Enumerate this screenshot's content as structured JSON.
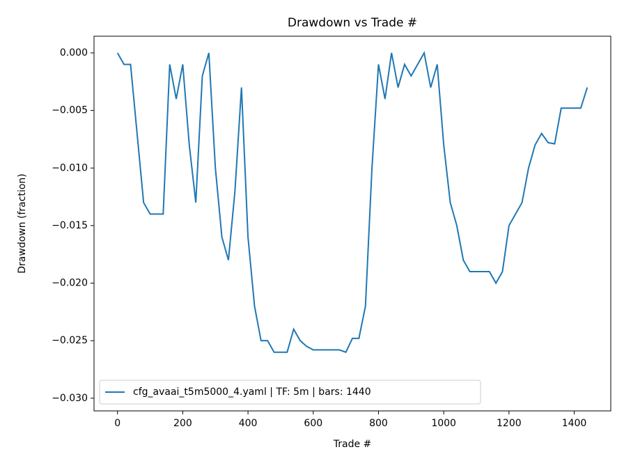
{
  "chart_data": {
    "type": "line",
    "title": "Drawdown vs Trade #",
    "xlabel": "Trade #",
    "ylabel": "Drawdown (fraction)",
    "x": [
      0,
      20,
      40,
      60,
      80,
      100,
      120,
      140,
      160,
      180,
      200,
      220,
      240,
      260,
      280,
      300,
      320,
      340,
      360,
      380,
      400,
      420,
      440,
      460,
      480,
      500,
      520,
      540,
      560,
      580,
      600,
      620,
      640,
      660,
      680,
      700,
      720,
      740,
      760,
      780,
      800,
      820,
      840,
      860,
      880,
      900,
      920,
      940,
      960,
      980,
      1000,
      1020,
      1040,
      1060,
      1080,
      1100,
      1120,
      1140,
      1160,
      1180,
      1200,
      1220,
      1240,
      1260,
      1280,
      1300,
      1320,
      1340,
      1360,
      1380,
      1400,
      1420,
      1440
    ],
    "series": [
      {
        "name": "cfg_avaai_t5m5000_4.yaml | TF: 5m | bars: 1440",
        "color": "#1f77b4",
        "values": [
          0,
          -0.001,
          -0.001,
          -0.007,
          -0.013,
          -0.014,
          -0.014,
          -0.014,
          -0.001,
          -0.004,
          -0.001,
          -0.008,
          -0.013,
          -0.002,
          0,
          -0.01,
          -0.016,
          -0.018,
          -0.012,
          -0.003,
          -0.016,
          -0.022,
          -0.025,
          -0.025,
          -0.026,
          -0.026,
          -0.026,
          -0.024,
          -0.025,
          -0.0255,
          -0.0258,
          -0.0258,
          -0.0258,
          -0.0258,
          -0.0258,
          -0.026,
          -0.0248,
          -0.0248,
          -0.022,
          -0.01,
          -0.001,
          -0.004,
          0,
          -0.003,
          -0.001,
          -0.002,
          -0.001,
          0,
          -0.003,
          -0.001,
          -0.008,
          -0.013,
          -0.015,
          -0.018,
          -0.019,
          -0.019,
          -0.019,
          -0.019,
          -0.02,
          -0.019,
          -0.015,
          -0.014,
          -0.013,
          -0.01,
          -0.008,
          -0.007,
          -0.0078,
          -0.0079,
          -0.0048,
          -0.0048,
          -0.0048,
          -0.0048,
          -0.003
        ]
      }
    ],
    "xlim": [
      -72,
      1512
    ],
    "ylim": [
      -0.0311,
      0.00145
    ],
    "xticks": [
      0,
      200,
      400,
      600,
      800,
      1000,
      1200,
      1400
    ],
    "yticks": [
      {
        "value": 0,
        "label": "0.000"
      },
      {
        "value": -0.005,
        "label": "−0.005"
      },
      {
        "value": -0.01,
        "label": "−0.010"
      },
      {
        "value": -0.015,
        "label": "−0.015"
      },
      {
        "value": -0.02,
        "label": "−0.020"
      },
      {
        "value": -0.025,
        "label": "−0.025"
      },
      {
        "value": -0.03,
        "label": "−0.030"
      }
    ],
    "legend": "lower left"
  }
}
